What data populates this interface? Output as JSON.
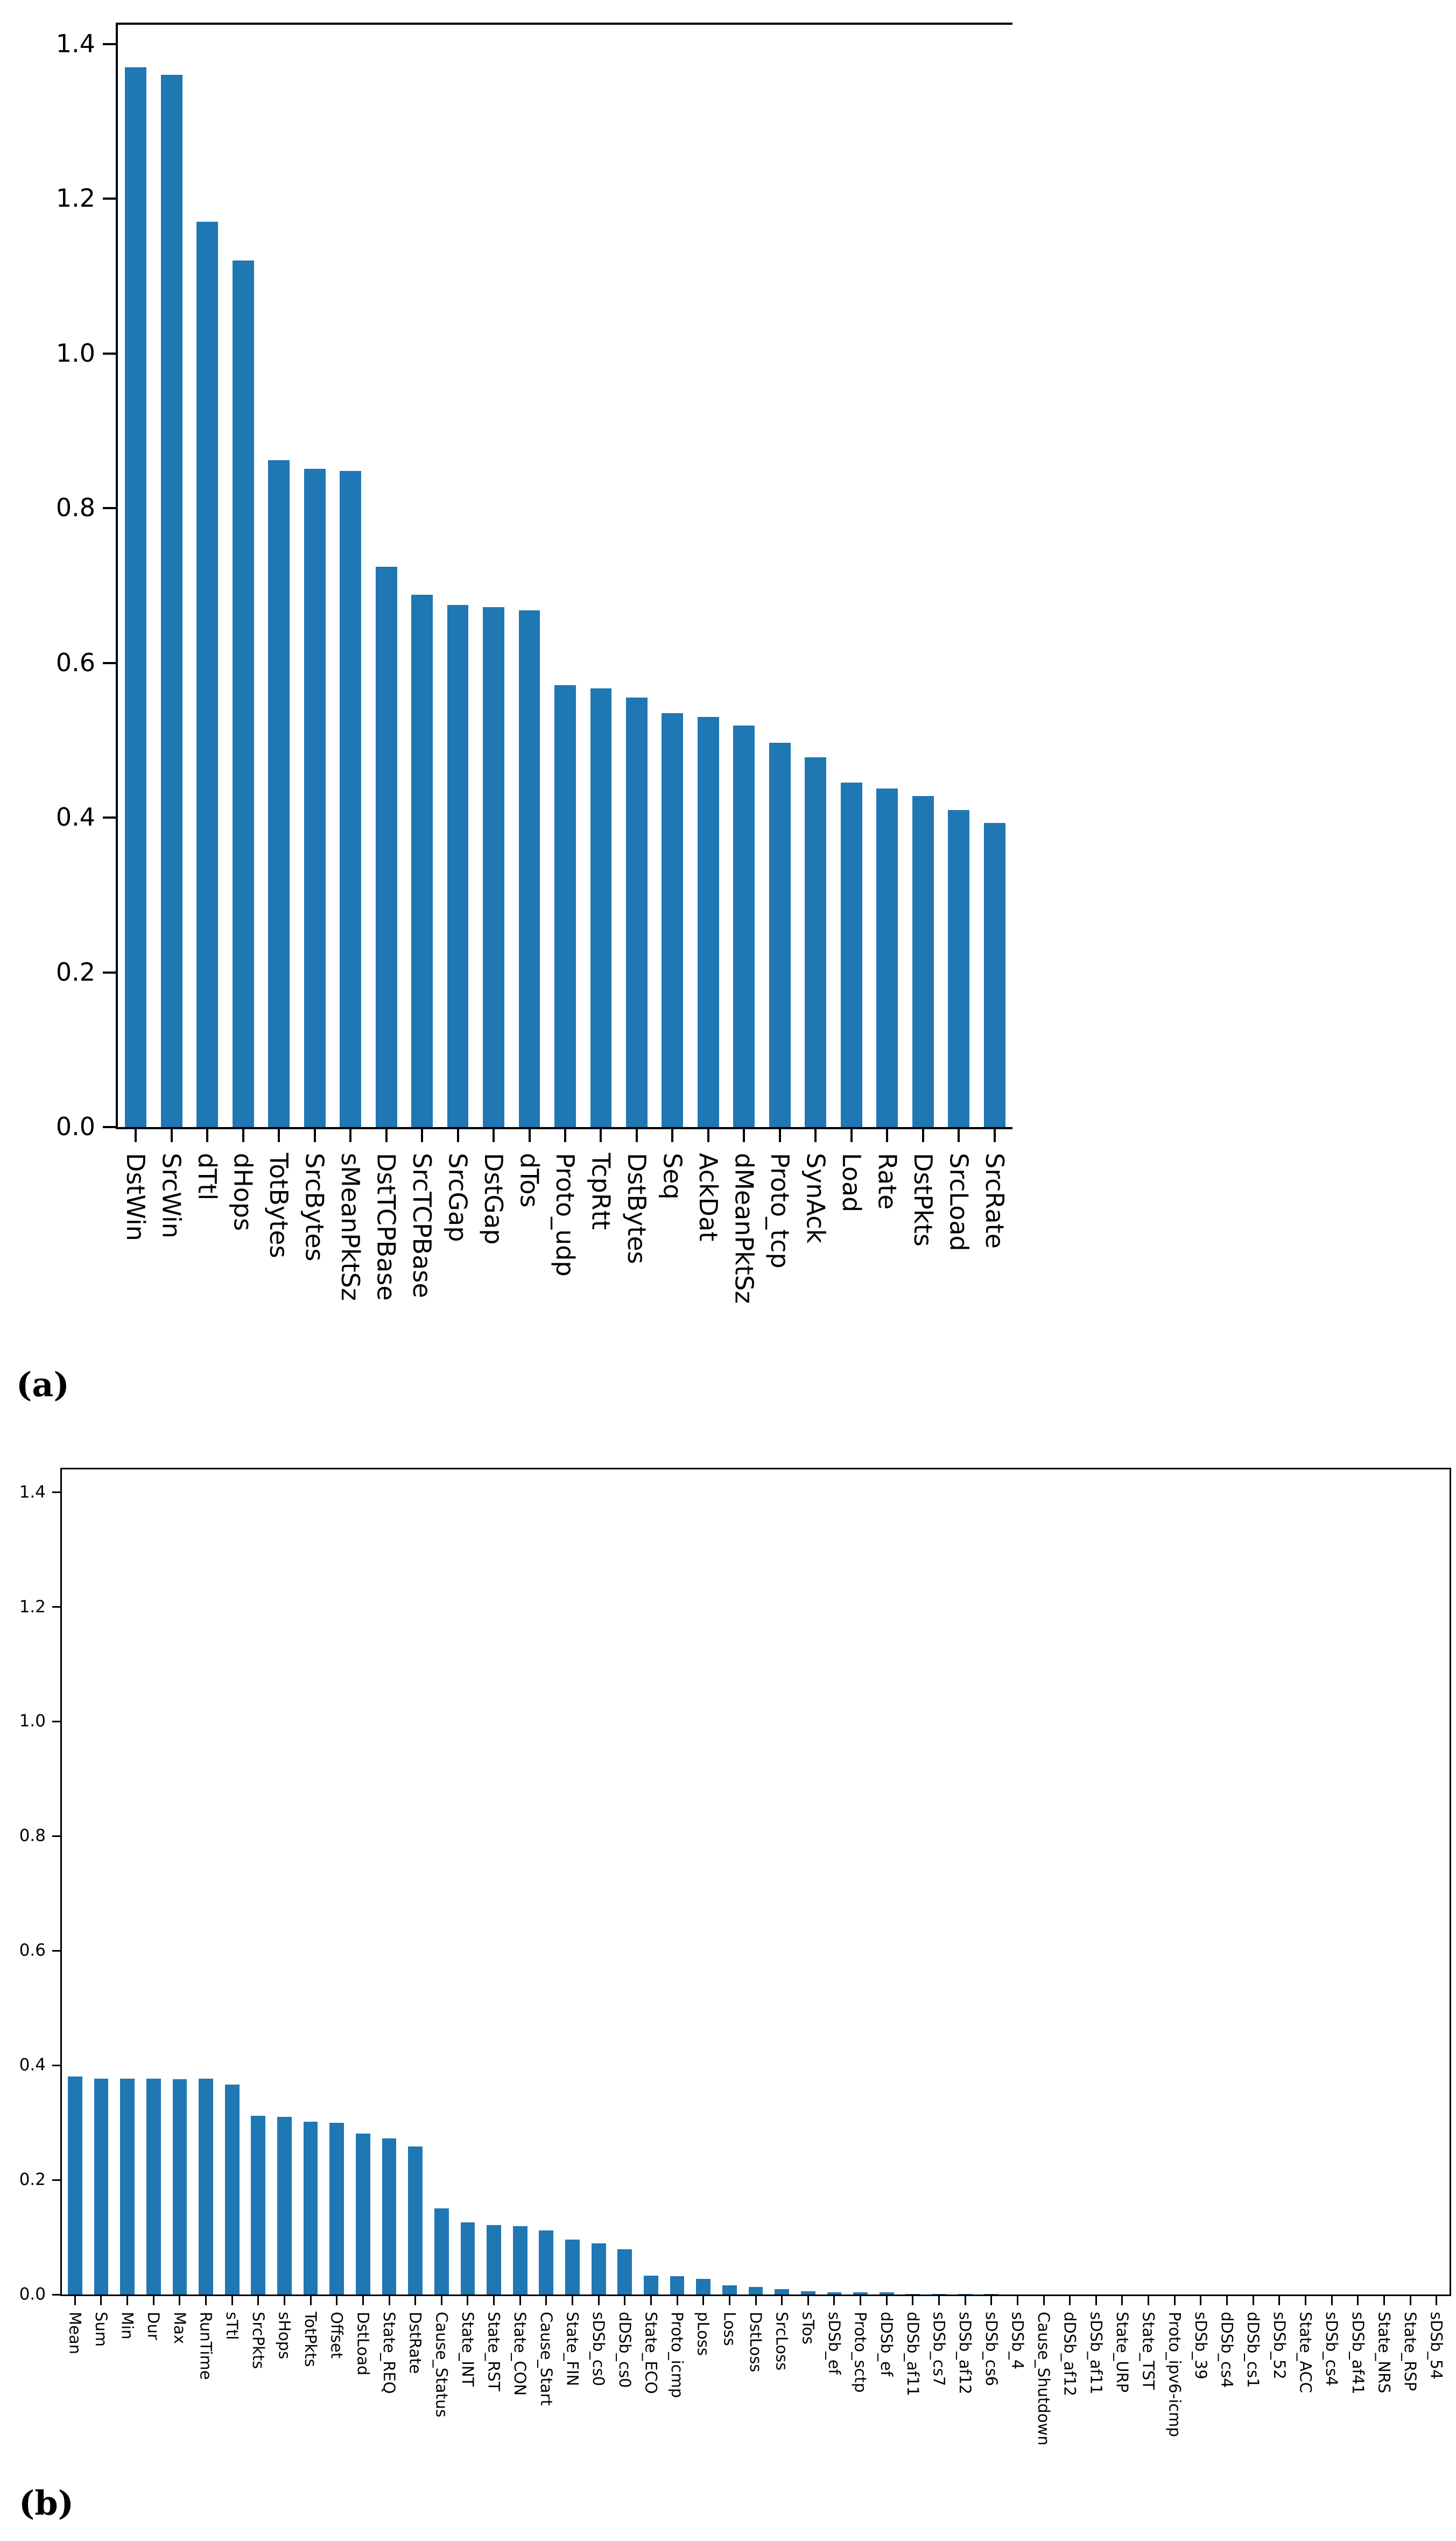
{
  "figure": {
    "caption_a": "(a)",
    "caption_b": "(b)"
  },
  "bar_color": "#1f77b4",
  "axis_color": "#000000",
  "chart_data": [
    {
      "type": "bar",
      "title": "",
      "xlabel": "",
      "ylabel": "",
      "ylim": [
        0,
        1.425
      ],
      "grid": false,
      "legend": "none",
      "ytick_labels": [
        "0.0",
        "0.2",
        "0.4",
        "0.6",
        "0.8",
        "1.0",
        "1.2",
        "1.4"
      ],
      "categories": [
        "DstWin",
        "SrcWin",
        "dTtl",
        "dHops",
        "TotBytes",
        "SrcBytes",
        "sMeanPktSz",
        "DstTCPBase",
        "SrcTCPBase",
        "SrcGap",
        "DstGap",
        "dTos",
        "Proto_udp",
        "TcpRtt",
        "DstBytes",
        "Seq",
        "AckDat",
        "dMeanPktSz",
        "Proto_tcp",
        "SynAck",
        "Load",
        "Rate",
        "DstPkts",
        "SrcLoad",
        "SrcRate"
      ],
      "values": [
        1.37,
        1.36,
        1.17,
        1.12,
        0.862,
        0.851,
        0.848,
        0.724,
        0.688,
        0.675,
        0.672,
        0.668,
        0.571,
        0.567,
        0.555,
        0.535,
        0.53,
        0.519,
        0.497,
        0.478,
        0.445,
        0.438,
        0.428,
        0.41,
        0.393
      ]
    },
    {
      "type": "bar",
      "title": "",
      "xlabel": "",
      "ylabel": "",
      "ylim": [
        0,
        1.44
      ],
      "grid": false,
      "legend": "none",
      "ytick_labels": [
        "0.0",
        "0.2",
        "0.4",
        "0.6",
        "0.8",
        "1.0",
        "1.2",
        "1.4"
      ],
      "categories": [
        "Mean",
        "Sum",
        "Min",
        "Dur",
        "Max",
        "RunTime",
        "sTtl",
        "SrcPkts",
        "sHops",
        "TotPkts",
        "Offset",
        "DstLoad",
        "State_REQ",
        "DstRate",
        "Cause_Status",
        "State_INT",
        "State_RST",
        "State_CON",
        "Cause_Start",
        "State_FIN",
        "sDSb_cs0",
        "dDSb_cs0",
        "State_ECO",
        "Proto_icmp",
        "pLoss",
        "Loss",
        "DstLoss",
        "SrcLoss",
        "sTos",
        "sDSb_ef",
        "Proto_sctp",
        "dDSb_ef",
        "dDSb_af11",
        "sDSb_cs7",
        "sDSb_af12",
        "sDSb_cs6",
        "sDSb_4",
        "Cause_Shutdown",
        "dDSb_af12",
        "sDSb_af11",
        "State_URP",
        "State_TST",
        "Proto_ipv6-icmp",
        "sDSb_39",
        "dDSb_cs4",
        "dDSb_cs1",
        "sDSb_52",
        "State_ACC",
        "sDSb_cs4",
        "sDSb_af41",
        "State_NRS",
        "State_RSP",
        "sDSb_54"
      ],
      "values": [
        0.38,
        0.377,
        0.377,
        0.377,
        0.376,
        0.377,
        0.366,
        0.312,
        0.31,
        0.302,
        0.3,
        0.281,
        0.272,
        0.258,
        0.15,
        0.126,
        0.121,
        0.119,
        0.112,
        0.096,
        0.089,
        0.079,
        0.033,
        0.032,
        0.027,
        0.016,
        0.013,
        0.009,
        0.006,
        0.004,
        0.004,
        0.004,
        0.001,
        0.001,
        0.001,
        0.001,
        0,
        0,
        0,
        0,
        0,
        0,
        0,
        0,
        0,
        0,
        0,
        0,
        0,
        0,
        0,
        0,
        0
      ]
    }
  ]
}
